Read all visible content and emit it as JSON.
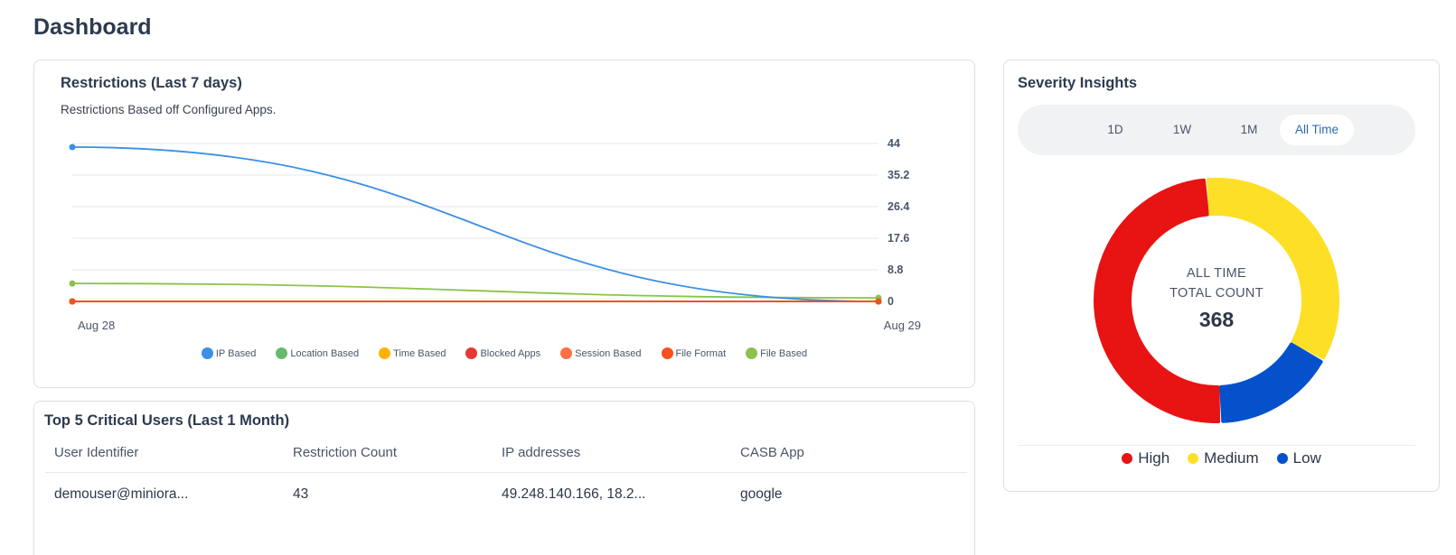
{
  "page": {
    "title": "Dashboard"
  },
  "restrictions": {
    "title": "Restrictions (Last 7 days)",
    "subtitle": "Restrictions Based off Configured Apps."
  },
  "chart_data": {
    "type": "line",
    "title": "Restrictions (Last 7 days)",
    "x": [
      "Aug 28",
      "Aug 29"
    ],
    "y_ticks": [
      "44",
      "35.2",
      "26.4",
      "17.6",
      "8.8",
      "0"
    ],
    "ylim": [
      0,
      44
    ],
    "y_axis_position": "right",
    "grid": true,
    "legend_position": "bottom",
    "series": [
      {
        "name": "IP Based",
        "color": "#3b8fe6",
        "values": [
          43,
          0
        ]
      },
      {
        "name": "Location Based",
        "color": "#66bb6a",
        "values": [
          0,
          0
        ]
      },
      {
        "name": "Time Based",
        "color": "#ffb300",
        "values": [
          0,
          0
        ]
      },
      {
        "name": "Blocked Apps",
        "color": "#e53935",
        "values": [
          0,
          0
        ]
      },
      {
        "name": "Session Based",
        "color": "#ff7043",
        "values": [
          0,
          0
        ]
      },
      {
        "name": "File Format",
        "color": "#f4511e",
        "values": [
          0,
          0
        ]
      },
      {
        "name": "File Based",
        "color": "#8bc34a",
        "values": [
          5,
          1
        ]
      }
    ]
  },
  "users": {
    "title": "Top 5 Critical Users (Last 1 Month)",
    "columns": [
      "User Identifier",
      "Restriction Count",
      "IP addresses",
      "CASB App"
    ],
    "rows": [
      [
        "demouser@miniora...",
        "43",
        "49.248.140.166, 18.2...",
        "google"
      ]
    ]
  },
  "severity": {
    "title": "Severity Insights",
    "ranges": [
      "1D",
      "1W",
      "1M",
      "All Time"
    ],
    "active_range": "All Time",
    "center_label_1": "ALL TIME",
    "center_label_2": "TOTAL COUNT",
    "total": "368",
    "segments": [
      {
        "name": "High",
        "color": "#e81313",
        "value": 181
      },
      {
        "name": "Medium",
        "color": "#fde026",
        "value": 127
      },
      {
        "name": "Low",
        "color": "#0551cc",
        "value": 60
      }
    ]
  }
}
